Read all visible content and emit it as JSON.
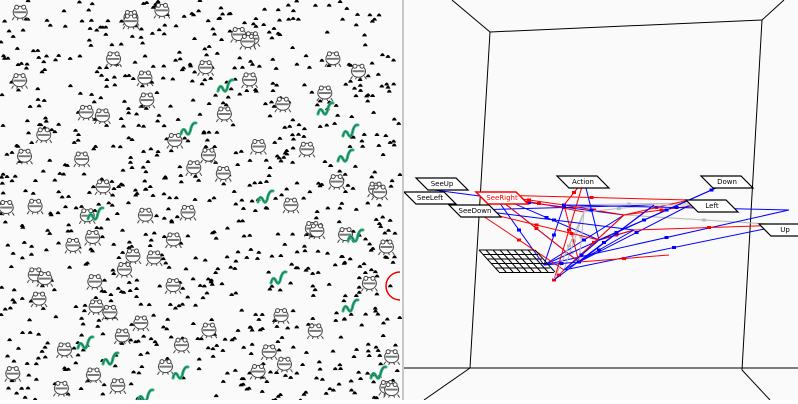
{
  "world": {
    "entities": [
      "food-dot",
      "frog",
      "snake"
    ],
    "colors": {
      "background": "#fafafa",
      "food": "#000000",
      "snake": "#2eb07a",
      "frog": "#7a7a7a"
    }
  },
  "graph": {
    "nodes": [
      {
        "id": "seeup",
        "label": "SeeUp"
      },
      {
        "id": "seeleft",
        "label": "SeeLeft"
      },
      {
        "id": "seeright",
        "label": "SeeRight"
      },
      {
        "id": "seedown",
        "label": "SeeDown"
      },
      {
        "id": "action",
        "label": "Action"
      },
      {
        "id": "down",
        "label": "Down"
      },
      {
        "id": "left",
        "label": "Left"
      },
      {
        "id": "up",
        "label": "Up"
      }
    ],
    "colors": {
      "excitatory": "#ff0000",
      "inhibitory": "#0000ff",
      "neutral": "#bbbbbb"
    }
  }
}
